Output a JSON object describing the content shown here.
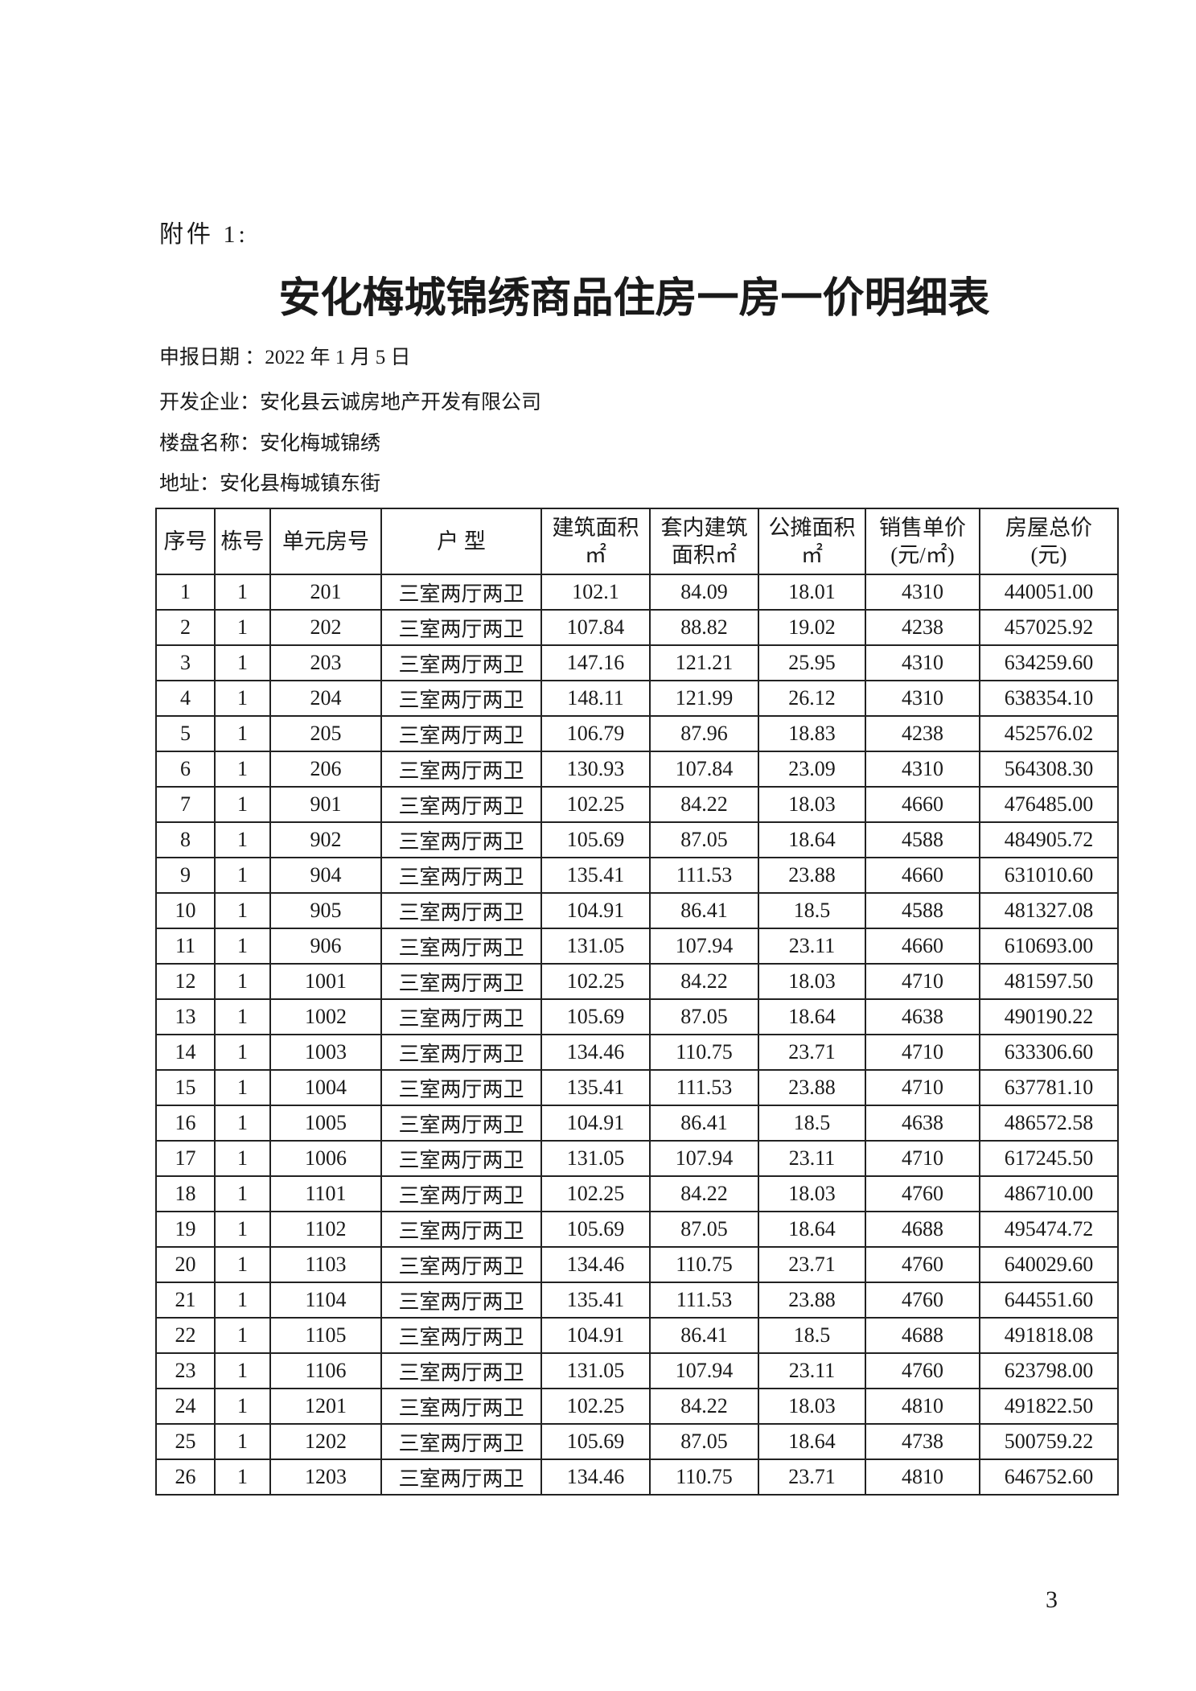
{
  "attachment_label": "附件 1:",
  "title": "安化梅城锦绣商品住房一房一价明细表",
  "info": {
    "date": "申报日期 ：2022 年 1 月 5 日",
    "developer": "开发企业：安化县云诚房地产开发有限公司",
    "project": "楼盘名称：安化梅城锦绣",
    "address": "地址：安化县梅城镇东街"
  },
  "table": {
    "headers": [
      [
        "序号"
      ],
      [
        "栋号"
      ],
      [
        "单元房号"
      ],
      [
        "户  型"
      ],
      [
        "建筑面积",
        "㎡"
      ],
      [
        "套内建筑",
        "面积㎡"
      ],
      [
        "公摊面积",
        "㎡"
      ],
      [
        "销售单价",
        "(元/㎡)"
      ],
      [
        "房屋总价",
        "(元)"
      ]
    ],
    "rows": [
      [
        "1",
        "1",
        "201",
        "三室两厅两卫",
        "102.1",
        "84.09",
        "18.01",
        "4310",
        "440051.00"
      ],
      [
        "2",
        "1",
        "202",
        "三室两厅两卫",
        "107.84",
        "88.82",
        "19.02",
        "4238",
        "457025.92"
      ],
      [
        "3",
        "1",
        "203",
        "三室两厅两卫",
        "147.16",
        "121.21",
        "25.95",
        "4310",
        "634259.60"
      ],
      [
        "4",
        "1",
        "204",
        "三室两厅两卫",
        "148.11",
        "121.99",
        "26.12",
        "4310",
        "638354.10"
      ],
      [
        "5",
        "1",
        "205",
        "三室两厅两卫",
        "106.79",
        "87.96",
        "18.83",
        "4238",
        "452576.02"
      ],
      [
        "6",
        "1",
        "206",
        "三室两厅两卫",
        "130.93",
        "107.84",
        "23.09",
        "4310",
        "564308.30"
      ],
      [
        "7",
        "1",
        "901",
        "三室两厅两卫",
        "102.25",
        "84.22",
        "18.03",
        "4660",
        "476485.00"
      ],
      [
        "8",
        "1",
        "902",
        "三室两厅两卫",
        "105.69",
        "87.05",
        "18.64",
        "4588",
        "484905.72"
      ],
      [
        "9",
        "1",
        "904",
        "三室两厅两卫",
        "135.41",
        "111.53",
        "23.88",
        "4660",
        "631010.60"
      ],
      [
        "10",
        "1",
        "905",
        "三室两厅两卫",
        "104.91",
        "86.41",
        "18.5",
        "4588",
        "481327.08"
      ],
      [
        "11",
        "1",
        "906",
        "三室两厅两卫",
        "131.05",
        "107.94",
        "23.11",
        "4660",
        "610693.00"
      ],
      [
        "12",
        "1",
        "1001",
        "三室两厅两卫",
        "102.25",
        "84.22",
        "18.03",
        "4710",
        "481597.50"
      ],
      [
        "13",
        "1",
        "1002",
        "三室两厅两卫",
        "105.69",
        "87.05",
        "18.64",
        "4638",
        "490190.22"
      ],
      [
        "14",
        "1",
        "1003",
        "三室两厅两卫",
        "134.46",
        "110.75",
        "23.71",
        "4710",
        "633306.60"
      ],
      [
        "15",
        "1",
        "1004",
        "三室两厅两卫",
        "135.41",
        "111.53",
        "23.88",
        "4710",
        "637781.10"
      ],
      [
        "16",
        "1",
        "1005",
        "三室两厅两卫",
        "104.91",
        "86.41",
        "18.5",
        "4638",
        "486572.58"
      ],
      [
        "17",
        "1",
        "1006",
        "三室两厅两卫",
        "131.05",
        "107.94",
        "23.11",
        "4710",
        "617245.50"
      ],
      [
        "18",
        "1",
        "1101",
        "三室两厅两卫",
        "102.25",
        "84.22",
        "18.03",
        "4760",
        "486710.00"
      ],
      [
        "19",
        "1",
        "1102",
        "三室两厅两卫",
        "105.69",
        "87.05",
        "18.64",
        "4688",
        "495474.72"
      ],
      [
        "20",
        "1",
        "1103",
        "三室两厅两卫",
        "134.46",
        "110.75",
        "23.71",
        "4760",
        "640029.60"
      ],
      [
        "21",
        "1",
        "1104",
        "三室两厅两卫",
        "135.41",
        "111.53",
        "23.88",
        "4760",
        "644551.60"
      ],
      [
        "22",
        "1",
        "1105",
        "三室两厅两卫",
        "104.91",
        "86.41",
        "18.5",
        "4688",
        "491818.08"
      ],
      [
        "23",
        "1",
        "1106",
        "三室两厅两卫",
        "131.05",
        "107.94",
        "23.11",
        "4760",
        "623798.00"
      ],
      [
        "24",
        "1",
        "1201",
        "三室两厅两卫",
        "102.25",
        "84.22",
        "18.03",
        "4810",
        "491822.50"
      ],
      [
        "25",
        "1",
        "1202",
        "三室两厅两卫",
        "105.69",
        "87.05",
        "18.64",
        "4738",
        "500759.22"
      ],
      [
        "26",
        "1",
        "1203",
        "三室两厅两卫",
        "134.46",
        "110.75",
        "23.71",
        "4810",
        "646752.60"
      ]
    ]
  },
  "page_number": "3"
}
